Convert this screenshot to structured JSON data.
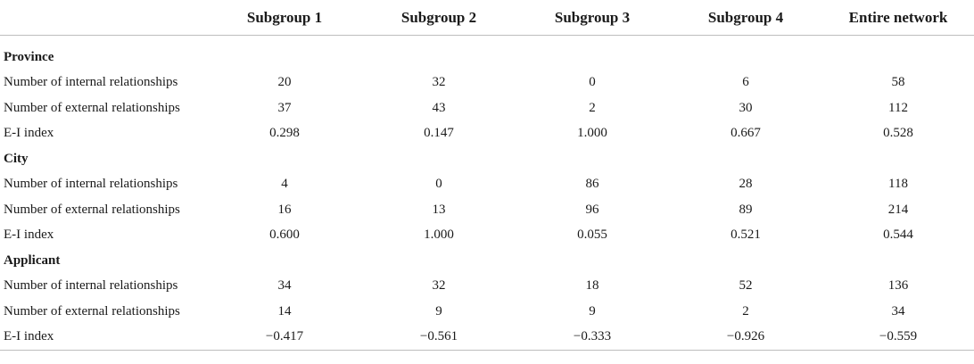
{
  "table": {
    "headers": [
      "",
      "Subgroup 1",
      "Subgroup 2",
      "Subgroup 3",
      "Subgroup 4",
      "Entire network"
    ],
    "sections": [
      {
        "title": "Province",
        "rows": [
          {
            "label": "Number of internal relationships",
            "values": [
              "20",
              "32",
              "0",
              "6",
              "58"
            ]
          },
          {
            "label": "Number of external relationships",
            "values": [
              "37",
              "43",
              "2",
              "30",
              "112"
            ]
          },
          {
            "label": "E-I index",
            "values": [
              "0.298",
              "0.147",
              "1.000",
              "0.667",
              "0.528"
            ]
          }
        ]
      },
      {
        "title": "City",
        "rows": [
          {
            "label": "Number of internal relationships",
            "values": [
              "4",
              "0",
              "86",
              "28",
              "118"
            ]
          },
          {
            "label": "Number of external relationships",
            "values": [
              "16",
              "13",
              "96",
              "89",
              "214"
            ]
          },
          {
            "label": "E-I index",
            "values": [
              "0.600",
              "1.000",
              "0.055",
              "0.521",
              "0.544"
            ]
          }
        ]
      },
      {
        "title": "Applicant",
        "rows": [
          {
            "label": "Number of internal relationships",
            "values": [
              "34",
              "32",
              "18",
              "52",
              "136"
            ]
          },
          {
            "label": "Number of external relationships",
            "values": [
              "14",
              "9",
              "9",
              "2",
              "34"
            ]
          },
          {
            "label": "E-I index",
            "values": [
              "−0.417",
              "−0.561",
              "−0.333",
              "−0.926",
              "−0.559"
            ]
          }
        ]
      }
    ]
  }
}
